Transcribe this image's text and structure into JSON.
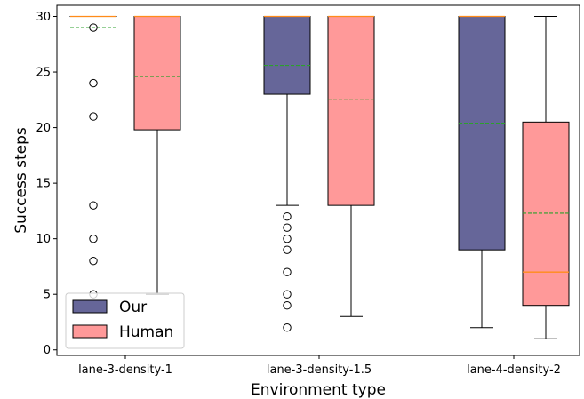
{
  "chart_data": {
    "type": "box",
    "xlabel": "Environment type",
    "ylabel": "Success steps",
    "ylim": [
      -0.5,
      31
    ],
    "yticks": [
      0,
      5,
      10,
      15,
      20,
      25,
      30
    ],
    "categories": [
      "lane-3-density-1",
      "lane-3-density-1.5",
      "lane-4-density-2"
    ],
    "grid": false,
    "legend_position": "lower-left",
    "series": [
      {
        "name": "Our",
        "color": "#666699",
        "boxes": [
          {
            "q1": 30,
            "median": 30,
            "q3": 30,
            "mean": 29,
            "whisker_low": 30,
            "whisker_high": 30,
            "outliers": [
              29,
              24,
              21,
              13,
              10,
              8,
              5
            ]
          },
          {
            "q1": 23,
            "median": 30,
            "q3": 30,
            "mean": 25.6,
            "whisker_low": 13,
            "whisker_high": 30,
            "outliers": [
              12,
              11,
              10,
              9,
              7,
              5,
              4,
              2
            ]
          },
          {
            "q1": 9,
            "median": 30,
            "q3": 30,
            "mean": 20.4,
            "whisker_low": 2,
            "whisker_high": 30,
            "outliers": []
          }
        ]
      },
      {
        "name": "Human",
        "color": "#ff9999",
        "boxes": [
          {
            "q1": 19.8,
            "median": 30,
            "q3": 30,
            "mean": 24.6,
            "whisker_low": 5,
            "whisker_high": 30,
            "outliers": []
          },
          {
            "q1": 13,
            "median": 30,
            "q3": 30,
            "mean": 22.5,
            "whisker_low": 3,
            "whisker_high": 30,
            "outliers": []
          },
          {
            "q1": 4,
            "median": 7,
            "q3": 20.5,
            "mean": 12.3,
            "whisker_low": 1,
            "whisker_high": 30,
            "outliers": []
          }
        ]
      }
    ],
    "median_color": "#ff8c1a",
    "mean_color": "#2ca02c"
  }
}
